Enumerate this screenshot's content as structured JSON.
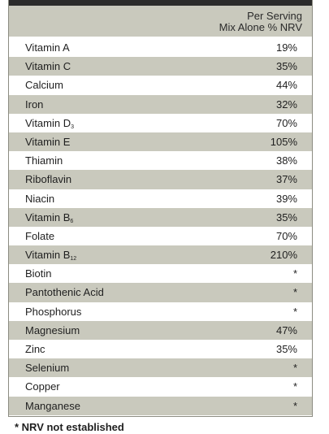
{
  "header": {
    "line1": "Per Serving",
    "line2": "Mix Alone % NRV"
  },
  "rows": [
    {
      "name": "Vitamin A",
      "sub": "",
      "value": "19%"
    },
    {
      "name": "Vitamin C",
      "sub": "",
      "value": "35%"
    },
    {
      "name": "Calcium",
      "sub": "",
      "value": "44%"
    },
    {
      "name": "Iron",
      "sub": "",
      "value": "32%"
    },
    {
      "name": "Vitamin D",
      "sub": "3",
      "value": "70%"
    },
    {
      "name": "Vitamin E",
      "sub": "",
      "value": "105%"
    },
    {
      "name": "Thiamin",
      "sub": "",
      "value": "38%"
    },
    {
      "name": "Riboflavin",
      "sub": "",
      "value": "37%"
    },
    {
      "name": "Niacin",
      "sub": "",
      "value": "39%"
    },
    {
      "name": "Vitamin B",
      "sub": "6",
      "value": "35%"
    },
    {
      "name": "Folate",
      "sub": "",
      "value": "70%"
    },
    {
      "name": "Vitamin B",
      "sub": "12",
      "value": "210%"
    },
    {
      "name": "Biotin",
      "sub": "",
      "value": "*"
    },
    {
      "name": "Pantothenic Acid",
      "sub": "",
      "value": "*"
    },
    {
      "name": "Phosphorus",
      "sub": "",
      "value": "*"
    },
    {
      "name": "Magnesium",
      "sub": "",
      "value": "47%"
    },
    {
      "name": "Zinc",
      "sub": "",
      "value": "35%"
    },
    {
      "name": "Selenium",
      "sub": "",
      "value": "*"
    },
    {
      "name": "Copper",
      "sub": "",
      "value": "*"
    },
    {
      "name": "Manganese",
      "sub": "",
      "value": "*"
    }
  ],
  "footnote": "* NRV not established",
  "colors": {
    "shaded_row": "#c9c9bd",
    "top_bar": "#2b2b2b",
    "border": "#8c8c82"
  }
}
